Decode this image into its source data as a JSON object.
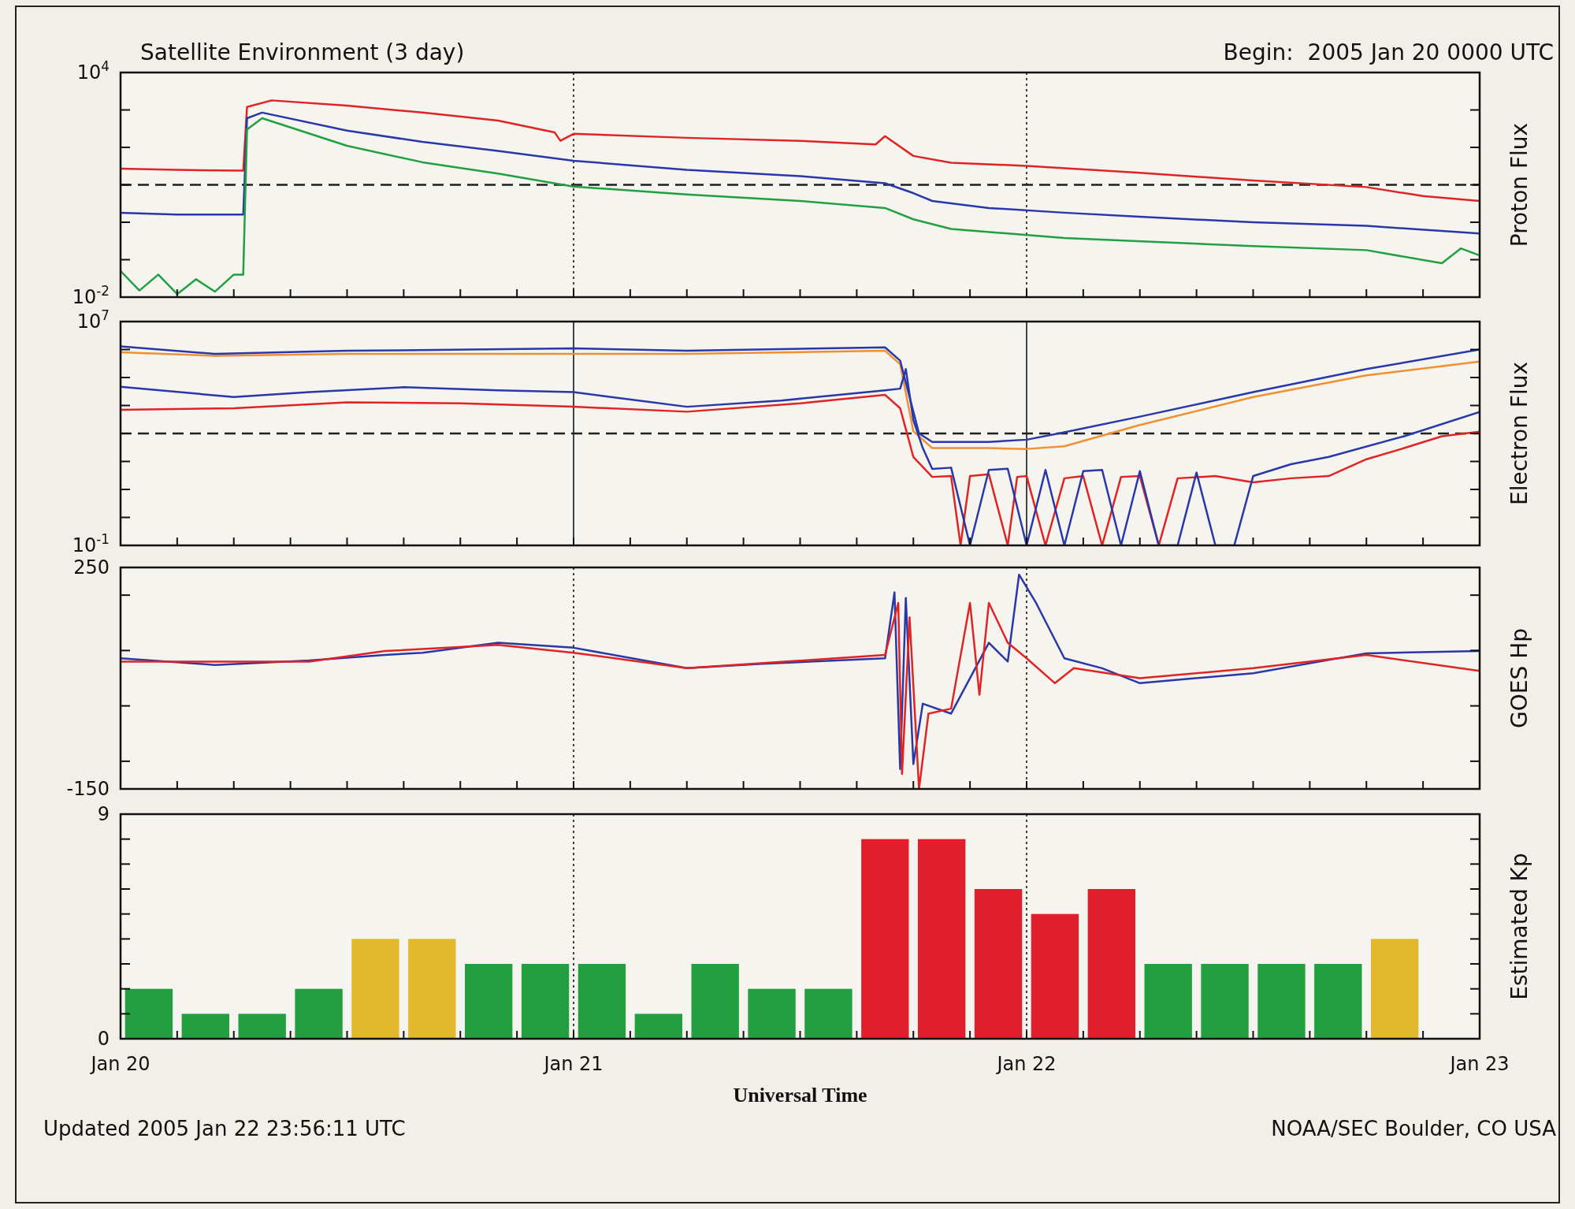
{
  "chart_data": [
    {
      "type": "line",
      "title": "Satellite Environment (3 day)",
      "subtitle": "Begin:  2005 Jan 20 0000 UTC",
      "ylabel": "Proton Flux",
      "log": "y",
      "tick_labels": "y",
      "xlim": [
        "2005-01-20T00:00",
        "2005-01-23T00:00"
      ],
      "xticks": [
        {
          "value": "2005-01-20T00:00",
          "label": null
        },
        {
          "value": "2005-01-20T03:00",
          "label": null
        },
        {
          "value": "2005-01-20T06:00",
          "label": null
        },
        {
          "value": "2005-01-20T09:00",
          "label": null
        },
        {
          "value": "2005-01-20T12:00",
          "label": null
        },
        {
          "value": "2005-01-20T15:00",
          "label": null
        },
        {
          "value": "2005-01-20T18:00",
          "label": null
        },
        {
          "value": "2005-01-20T21:00",
          "label": null
        },
        {
          "value": "2005-01-21T00:00",
          "label": null
        },
        {
          "value": "2005-01-21T03:00",
          "label": null
        },
        {
          "value": "2005-01-21T06:00",
          "label": null
        },
        {
          "value": "2005-01-21T09:00",
          "label": null
        },
        {
          "value": "2005-01-21T12:00",
          "label": null
        },
        {
          "value": "2005-01-21T15:00",
          "label": null
        },
        {
          "value": "2005-01-21T18:00",
          "label": null
        },
        {
          "value": "2005-01-21T21:00",
          "label": null
        },
        {
          "value": "2005-01-22T00:00",
          "label": null
        },
        {
          "value": "2005-01-22T03:00",
          "label": null
        },
        {
          "value": "2005-01-22T06:00",
          "label": null
        },
        {
          "value": "2005-01-22T09:00",
          "label": null
        },
        {
          "value": "2005-01-22T12:00",
          "label": null
        },
        {
          "value": "2005-01-22T15:00",
          "label": null
        },
        {
          "value": "2005-01-22T18:00",
          "label": null
        },
        {
          "value": "2005-01-22T21:00",
          "label": null
        },
        {
          "value": "2005-01-23T00:00",
          "label": null
        }
      ],
      "ylim": [
        0.01,
        10000
      ],
      "yticks": [
        {
          "value": 0.01,
          "label": "10$^{-2}$"
        },
        {
          "value": 0.1,
          "label": null
        },
        {
          "value": 1,
          "label": null
        },
        {
          "value": 10,
          "label": null
        },
        {
          "value": 100,
          "label": null
        },
        {
          "value": 1000,
          "label": null
        },
        {
          "value": 10000,
          "label": "10$^{4}$"
        }
      ],
      "ref_lines": [
        {
          "axis": "x",
          "value": "2005-01-21T00:00",
          "line_style": "dotted",
          "color": "#303030"
        },
        {
          "axis": "x",
          "value": "2005-01-22T00:00",
          "line_style": "dotted",
          "color": "#303030"
        },
        {
          "axis": "y",
          "value": 10,
          "line_style": "dashed",
          "color": "#202020"
        }
      ],
      "series": [
        {
          "color": "#e02424",
          "x": [
            "2005-01-20T00:00",
            "2005-01-20T03:00",
            "2005-01-20T06:30",
            "2005-01-20T06:42",
            "2005-01-20T08:00",
            "2005-01-20T12:00",
            "2005-01-20T16:00",
            "2005-01-20T20:00",
            "2005-01-20T23:00",
            "2005-01-20T23:18",
            "2005-01-21T00:00",
            "2005-01-21T06:00",
            "2005-01-21T12:00",
            "2005-01-21T16:00",
            "2005-01-21T16:30",
            "2005-01-21T18:00",
            "2005-01-21T20:00",
            "2005-01-22T00:00",
            "2005-01-22T06:00",
            "2005-01-22T12:00",
            "2005-01-22T18:00",
            "2005-01-22T21:00",
            "2005-01-23T00:00"
          ],
          "values": [
            27,
            25,
            24,
            1200,
            1800,
            1300,
            850,
            520,
            250,
            150,
            230,
            180,
            150,
            120,
            200,
            59,
            39,
            32,
            21,
            13,
            8.7,
            5,
            3.7
          ]
        },
        {
          "color": "#2838a8",
          "x": [
            "2005-01-20T00:00",
            "2005-01-20T03:00",
            "2005-01-20T06:30",
            "2005-01-20T06:42",
            "2005-01-20T07:30",
            "2005-01-20T12:00",
            "2005-01-20T16:00",
            "2005-01-20T20:00",
            "2005-01-21T00:00",
            "2005-01-21T06:00",
            "2005-01-21T12:00",
            "2005-01-21T16:30",
            "2005-01-21T18:00",
            "2005-01-21T19:00",
            "2005-01-21T22:00",
            "2005-01-22T02:00",
            "2005-01-22T06:00",
            "2005-01-22T12:00",
            "2005-01-22T18:00",
            "2005-01-23T00:00"
          ],
          "values": [
            1.8,
            1.6,
            1.6,
            600,
            850,
            280,
            140,
            80,
            44,
            25,
            17,
            11,
            6,
            3.7,
            2.4,
            1.8,
            1.4,
            1,
            0.8,
            0.5
          ]
        },
        {
          "color": "#20a040",
          "x": [
            "2005-01-20T00:00",
            "2005-01-20T01:00",
            "2005-01-20T02:00",
            "2005-01-20T03:00",
            "2005-01-20T04:00",
            "2005-01-20T05:00",
            "2005-01-20T06:00",
            "2005-01-20T06:30",
            "2005-01-20T06:42",
            "2005-01-20T07:30",
            "2005-01-20T12:00",
            "2005-01-20T16:00",
            "2005-01-20T20:00",
            "2005-01-21T00:00",
            "2005-01-21T06:00",
            "2005-01-21T12:00",
            "2005-01-21T16:30",
            "2005-01-21T18:00",
            "2005-01-21T20:00",
            "2005-01-22T02:00",
            "2005-01-22T12:00",
            "2005-01-22T18:00",
            "2005-01-22T22:00",
            "2005-01-22T23:00",
            "2005-01-23T00:00"
          ],
          "values": [
            0.05,
            0.015,
            0.04,
            0.012,
            0.03,
            0.014,
            0.04,
            0.04,
            300,
            600,
            110,
            40,
            20,
            9,
            5.5,
            3.7,
            2.4,
            1.2,
            0.66,
            0.38,
            0.23,
            0.18,
            0.08,
            0.2,
            0.13
          ]
        }
      ]
    },
    {
      "type": "line",
      "ylabel": "Electron Flux",
      "log": "y",
      "tick_labels": "y",
      "xlim": [
        "2005-01-20T00:00",
        "2005-01-23T00:00"
      ],
      "xticks": [
        {
          "value": "2005-01-20T00:00",
          "label": null
        },
        {
          "value": "2005-01-20T03:00",
          "label": null
        },
        {
          "value": "2005-01-20T06:00",
          "label": null
        },
        {
          "value": "2005-01-20T09:00",
          "label": null
        },
        {
          "value": "2005-01-20T12:00",
          "label": null
        },
        {
          "value": "2005-01-20T15:00",
          "label": null
        },
        {
          "value": "2005-01-20T18:00",
          "label": null
        },
        {
          "value": "2005-01-20T21:00",
          "label": null
        },
        {
          "value": "2005-01-21T00:00",
          "label": null
        },
        {
          "value": "2005-01-21T03:00",
          "label": null
        },
        {
          "value": "2005-01-21T06:00",
          "label": null
        },
        {
          "value": "2005-01-21T09:00",
          "label": null
        },
        {
          "value": "2005-01-21T12:00",
          "label": null
        },
        {
          "value": "2005-01-21T15:00",
          "label": null
        },
        {
          "value": "2005-01-21T18:00",
          "label": null
        },
        {
          "value": "2005-01-21T21:00",
          "label": null
        },
        {
          "value": "2005-01-22T00:00",
          "label": null
        },
        {
          "value": "2005-01-22T03:00",
          "label": null
        },
        {
          "value": "2005-01-22T06:00",
          "label": null
        },
        {
          "value": "2005-01-22T09:00",
          "label": null
        },
        {
          "value": "2005-01-22T12:00",
          "label": null
        },
        {
          "value": "2005-01-22T15:00",
          "label": null
        },
        {
          "value": "2005-01-22T18:00",
          "label": null
        },
        {
          "value": "2005-01-22T21:00",
          "label": null
        },
        {
          "value": "2005-01-23T00:00",
          "label": null
        }
      ],
      "ylim": [
        0.1,
        10000000
      ],
      "yticks": [
        {
          "value": 0.1,
          "label": "10$^{-1}$"
        },
        {
          "value": 1,
          "label": null
        },
        {
          "value": 10,
          "label": null
        },
        {
          "value": 100,
          "label": null
        },
        {
          "value": 1000,
          "label": null
        },
        {
          "value": 10000,
          "label": null
        },
        {
          "value": 100000,
          "label": null
        },
        {
          "value": 1000000,
          "label": null
        },
        {
          "value": 10000000,
          "label": "10$^{7}$"
        }
      ],
      "ref_lines": [
        {
          "axis": "x",
          "value": "2005-01-21T00:00",
          "line_style": "solid",
          "color": "#303030"
        },
        {
          "axis": "x",
          "value": "2005-01-22T00:00",
          "line_style": "solid",
          "color": "#303030"
        },
        {
          "axis": "y",
          "value": 1000,
          "line_style": "dashed",
          "color": "#202020"
        }
      ],
      "series": [
        {
          "color": "#f09030",
          "x": [
            "2005-01-20T00:00",
            "2005-01-20T05:00",
            "2005-01-20T12:00",
            "2005-01-21T00:00",
            "2005-01-21T06:00",
            "2005-01-21T16:30",
            "2005-01-21T17:18",
            "2005-01-21T18:00",
            "2005-01-21T19:00",
            "2005-01-21T22:00",
            "2005-01-22T00:00",
            "2005-01-22T02:00",
            "2005-01-22T06:00",
            "2005-01-22T12:00",
            "2005-01-22T18:00",
            "2005-01-23T00:00"
          ],
          "values": [
            800000,
            600000,
            700000,
            700000,
            700000,
            900000,
            300000,
            1200,
            300,
            300,
            280,
            350,
            2000,
            20000,
            120000,
            370000
          ]
        },
        {
          "color": "#2838a8",
          "x": [
            "2005-01-20T00:00",
            "2005-01-20T05:00",
            "2005-01-20T12:00",
            "2005-01-21T00:00",
            "2005-01-21T06:00",
            "2005-01-21T16:30",
            "2005-01-21T17:18",
            "2005-01-21T17:48",
            "2005-01-21T18:18",
            "2005-01-21T19:00",
            "2005-01-21T22:00",
            "2005-01-22T00:00",
            "2005-01-22T02:00",
            "2005-01-22T06:00",
            "2005-01-22T12:00",
            "2005-01-22T18:00",
            "2005-01-23T00:00"
          ],
          "values": [
            1300000,
            700000,
            900000,
            1100000,
            900000,
            1200000,
            400000,
            20000,
            1000,
            500,
            500,
            600,
            1100,
            4000,
            30000,
            200000,
            1000000
          ]
        },
        {
          "color": "#e02424",
          "x": [
            "2005-01-20T00:00",
            "2005-01-20T06:00",
            "2005-01-20T12:00",
            "2005-01-20T18:00",
            "2005-01-21T00:00",
            "2005-01-21T06:00",
            "2005-01-21T12:00",
            "2005-01-21T16:30",
            "2005-01-21T17:18",
            "2005-01-21T18:00",
            "2005-01-21T19:00",
            "2005-01-21T20:00",
            "2005-01-21T20:30",
            "2005-01-21T21:00",
            "2005-01-21T22:00",
            "2005-01-21T23:00",
            "2005-01-21T23:30",
            "2005-01-22T00:00",
            "2005-01-22T01:00",
            "2005-01-22T02:00",
            "2005-01-22T03:00",
            "2005-01-22T04:00",
            "2005-01-22T05:00",
            "2005-01-22T06:00",
            "2005-01-22T07:00",
            "2005-01-22T08:00",
            "2005-01-22T10:00",
            "2005-01-22T12:00",
            "2005-01-22T14:00",
            "2005-01-22T16:00",
            "2005-01-22T18:00",
            "2005-01-22T20:00",
            "2005-01-22T22:00",
            "2005-01-23T00:00"
          ],
          "values": [
            7000,
            8000,
            13000,
            12000,
            9000,
            6000,
            12000,
            24000,
            8000,
            145,
            28,
            30,
            0.1,
            30,
            35,
            0.1,
            28,
            30,
            0.1,
            25,
            30,
            0.1,
            28,
            30,
            0.1,
            25,
            30,
            18,
            25,
            30,
            120,
            300,
            800,
            1150
          ]
        },
        {
          "color": "#2838a8",
          "x": [
            "2005-01-20T00:00",
            "2005-01-20T06:00",
            "2005-01-20T10:00",
            "2005-01-20T15:00",
            "2005-01-20T20:00",
            "2005-01-21T00:00",
            "2005-01-21T06:00",
            "2005-01-21T11:00",
            "2005-01-21T16:30",
            "2005-01-21T17:18",
            "2005-01-21T17:36",
            "2005-01-21T18:00",
            "2005-01-21T18:30",
            "2005-01-21T19:00",
            "2005-01-21T20:00",
            "2005-01-21T21:00",
            "2005-01-21T22:00",
            "2005-01-21T23:00",
            "2005-01-22T00:00",
            "2005-01-22T01:00",
            "2005-01-22T02:00",
            "2005-01-22T03:00",
            "2005-01-22T04:00",
            "2005-01-22T05:00",
            "2005-01-22T06:00",
            "2005-01-22T07:00",
            "2005-01-22T08:00",
            "2005-01-22T09:00",
            "2005-01-22T10:00",
            "2005-01-22T11:00",
            "2005-01-22T12:00",
            "2005-01-22T14:00",
            "2005-01-22T16:00",
            "2005-01-22T20:00",
            "2005-01-23T00:00"
          ],
          "values": [
            47000,
            20000,
            30000,
            45000,
            35000,
            30000,
            9000,
            15000,
            35000,
            40000,
            200000,
            3000,
            300,
            54,
            60,
            0.1,
            50,
            55,
            0.1,
            50,
            0.1,
            45,
            50,
            0.1,
            45,
            0.1,
            0.1,
            40,
            0.1,
            0.1,
            30,
            80,
            145,
            800,
            5900
          ]
        }
      ]
    },
    {
      "type": "line",
      "ylabel": "GOES Hp",
      "tick_labels": "y",
      "xlim": [
        "2005-01-20T00:00",
        "2005-01-23T00:00"
      ],
      "xticks": [
        {
          "value": "2005-01-20T00:00",
          "label": null
        },
        {
          "value": "2005-01-20T03:00",
          "label": null
        },
        {
          "value": "2005-01-20T06:00",
          "label": null
        },
        {
          "value": "2005-01-20T09:00",
          "label": null
        },
        {
          "value": "2005-01-20T12:00",
          "label": null
        },
        {
          "value": "2005-01-20T15:00",
          "label": null
        },
        {
          "value": "2005-01-20T18:00",
          "label": null
        },
        {
          "value": "2005-01-20T21:00",
          "label": null
        },
        {
          "value": "2005-01-21T00:00",
          "label": null
        },
        {
          "value": "2005-01-21T03:00",
          "label": null
        },
        {
          "value": "2005-01-21T06:00",
          "label": null
        },
        {
          "value": "2005-01-21T09:00",
          "label": null
        },
        {
          "value": "2005-01-21T12:00",
          "label": null
        },
        {
          "value": "2005-01-21T15:00",
          "label": null
        },
        {
          "value": "2005-01-21T18:00",
          "label": null
        },
        {
          "value": "2005-01-21T21:00",
          "label": null
        },
        {
          "value": "2005-01-22T00:00",
          "label": null
        },
        {
          "value": "2005-01-22T03:00",
          "label": null
        },
        {
          "value": "2005-01-22T06:00",
          "label": null
        },
        {
          "value": "2005-01-22T09:00",
          "label": null
        },
        {
          "value": "2005-01-22T12:00",
          "label": null
        },
        {
          "value": "2005-01-22T15:00",
          "label": null
        },
        {
          "value": "2005-01-22T18:00",
          "label": null
        },
        {
          "value": "2005-01-22T21:00",
          "label": null
        },
        {
          "value": "2005-01-23T00:00",
          "label": null
        }
      ],
      "ylim": [
        -150,
        250
      ],
      "yticks": [
        {
          "value": -150,
          "label": "-150"
        },
        {
          "value": -100,
          "label": null
        },
        {
          "value": 0,
          "label": null
        },
        {
          "value": 100,
          "label": null
        },
        {
          "value": 200,
          "label": null
        },
        {
          "value": 250,
          "label": "250"
        }
      ],
      "ref_lines": [
        {
          "axis": "x",
          "value": "2005-01-21T00:00",
          "line_style": "dotted",
          "color": "#303030"
        },
        {
          "axis": "x",
          "value": "2005-01-22T00:00",
          "line_style": "dotted",
          "color": "#303030"
        }
      ],
      "series": [
        {
          "color": "#2838a8",
          "x": [
            "2005-01-20T00:00",
            "2005-01-20T05:00",
            "2005-01-20T10:00",
            "2005-01-20T14:00",
            "2005-01-20T16:00",
            "2005-01-20T20:00",
            "2005-01-21T00:00",
            "2005-01-21T06:00",
            "2005-01-21T10:00",
            "2005-01-21T16:30",
            "2005-01-21T17:00",
            "2005-01-21T17:18",
            "2005-01-21T17:36",
            "2005-01-21T18:00",
            "2005-01-21T18:30",
            "2005-01-21T20:00",
            "2005-01-21T22:00",
            "2005-01-21T23:00",
            "2005-01-21T23:36",
            "2005-01-22T00:30",
            "2005-01-22T02:00",
            "2005-01-22T04:00",
            "2005-01-22T06:00",
            "2005-01-22T12:00",
            "2005-01-22T18:00",
            "2005-01-23T00:00"
          ],
          "values": [
            86,
            74,
            82,
            92,
            96,
            114,
            105,
            68,
            76,
            86,
            205,
            -114,
            195,
            -105,
            4,
            -14,
            114,
            80,
            237,
            186,
            86,
            68,
            41,
            59,
            95,
            99
          ]
        },
        {
          "color": "#e02424",
          "x": [
            "2005-01-20T00:00",
            "2005-01-20T10:00",
            "2005-01-20T14:00",
            "2005-01-20T20:00",
            "2005-01-21T00:00",
            "2005-01-21T06:00",
            "2005-01-21T16:30",
            "2005-01-21T17:12",
            "2005-01-21T17:24",
            "2005-01-21T17:48",
            "2005-01-21T18:18",
            "2005-01-21T18:48",
            "2005-01-21T20:00",
            "2005-01-21T21:00",
            "2005-01-21T21:30",
            "2005-01-21T22:00",
            "2005-01-21T23:00",
            "2005-01-22T00:00",
            "2005-01-22T01:30",
            "2005-01-22T02:30",
            "2005-01-22T06:00",
            "2005-01-22T12:00",
            "2005-01-22T18:00",
            "2005-01-23T00:00"
          ],
          "values": [
            80,
            80,
            99,
            110,
            96,
            68,
            92,
            186,
            -123,
            160,
            -150,
            -14,
            -5,
            186,
            20,
            186,
            114,
            86,
            41,
            68,
            50,
            68,
            92,
            63
          ]
        }
      ]
    },
    {
      "type": "bar",
      "ylabel": "Estimated Kp",
      "xlabel": "Universal Time",
      "annotations": [
        "Updated 2005 Jan 22 23:56:11 UTC",
        "NOAA/SEC Boulder, CO USA"
      ],
      "xlim": [
        "2005-01-20T00:00",
        "2005-01-23T00:00"
      ],
      "xticks": [
        {
          "value": "2005-01-20T00:00",
          "label": "Jan 20"
        },
        {
          "value": "2005-01-20T03:00",
          "label": null
        },
        {
          "value": "2005-01-20T06:00",
          "label": null
        },
        {
          "value": "2005-01-20T09:00",
          "label": null
        },
        {
          "value": "2005-01-20T12:00",
          "label": null
        },
        {
          "value": "2005-01-20T15:00",
          "label": null
        },
        {
          "value": "2005-01-20T18:00",
          "label": null
        },
        {
          "value": "2005-01-20T21:00",
          "label": null
        },
        {
          "value": "2005-01-21T00:00",
          "label": "Jan 21"
        },
        {
          "value": "2005-01-21T03:00",
          "label": null
        },
        {
          "value": "2005-01-21T06:00",
          "label": null
        },
        {
          "value": "2005-01-21T09:00",
          "label": null
        },
        {
          "value": "2005-01-21T12:00",
          "label": null
        },
        {
          "value": "2005-01-21T15:00",
          "label": null
        },
        {
          "value": "2005-01-21T18:00",
          "label": null
        },
        {
          "value": "2005-01-21T21:00",
          "label": null
        },
        {
          "value": "2005-01-22T00:00",
          "label": "Jan 22"
        },
        {
          "value": "2005-01-22T03:00",
          "label": null
        },
        {
          "value": "2005-01-22T06:00",
          "label": null
        },
        {
          "value": "2005-01-22T09:00",
          "label": null
        },
        {
          "value": "2005-01-22T12:00",
          "label": null
        },
        {
          "value": "2005-01-22T15:00",
          "label": null
        },
        {
          "value": "2005-01-22T18:00",
          "label": null
        },
        {
          "value": "2005-01-22T21:00",
          "label": null
        },
        {
          "value": "2005-01-23T00:00",
          "label": "Jan 23"
        }
      ],
      "ylim": [
        0,
        9
      ],
      "yticks": [
        {
          "value": 0,
          "label": "0"
        },
        {
          "value": 1,
          "label": null
        },
        {
          "value": 2,
          "label": null
        },
        {
          "value": 3,
          "label": null
        },
        {
          "value": 4,
          "label": null
        },
        {
          "value": 5,
          "label": null
        },
        {
          "value": 6,
          "label": null
        },
        {
          "value": 7,
          "label": null
        },
        {
          "value": 8,
          "label": null
        },
        {
          "value": 9,
          "label": "9"
        }
      ],
      "ref_lines": [
        {
          "axis": "x",
          "value": "2005-01-21T00:00",
          "line_style": "dotted",
          "color": "#303030"
        },
        {
          "axis": "x",
          "value": "2005-01-22T00:00",
          "line_style": "dotted",
          "color": "#303030"
        }
      ],
      "x": [
        "2005-01-20T01:30",
        "2005-01-20T04:30",
        "2005-01-20T07:30",
        "2005-01-20T10:30",
        "2005-01-20T13:30",
        "2005-01-20T16:30",
        "2005-01-20T19:30",
        "2005-01-20T22:30",
        "2005-01-21T01:30",
        "2005-01-21T04:30",
        "2005-01-21T07:30",
        "2005-01-21T10:30",
        "2005-01-21T13:30",
        "2005-01-21T16:30",
        "2005-01-21T19:30",
        "2005-01-21T22:30",
        "2005-01-22T01:30",
        "2005-01-22T04:30",
        "2005-01-22T07:30",
        "2005-01-22T10:30",
        "2005-01-22T13:30",
        "2005-01-22T16:30",
        "2005-01-22T19:30"
      ],
      "values": [
        2,
        1,
        1,
        2,
        4,
        4,
        3,
        3,
        3,
        1,
        3,
        2,
        2,
        8,
        8,
        6,
        5,
        6,
        3,
        3,
        3,
        3,
        4
      ],
      "colors": [
        "#22a040",
        "#22a040",
        "#22a040",
        "#22a040",
        "#e2b92c",
        "#e2b92c",
        "#22a040",
        "#22a040",
        "#22a040",
        "#22a040",
        "#22a040",
        "#22a040",
        "#22a040",
        "#e01f2d",
        "#e01f2d",
        "#e01f2d",
        "#e01f2d",
        "#e01f2d",
        "#22a040",
        "#22a040",
        "#22a040",
        "#22a040",
        "#e2b92c"
      ]
    }
  ]
}
